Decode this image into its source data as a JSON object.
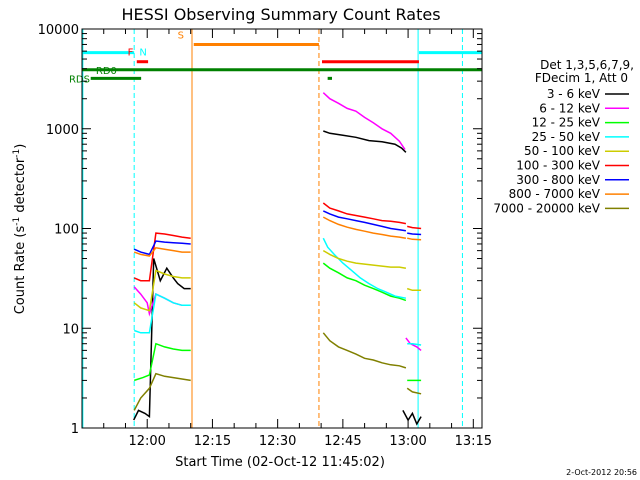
{
  "chart_data": {
    "type": "line",
    "title": "HESSI Observing Summary Count Rates",
    "xlabel": "Start Time (02-Oct-12 11:45:02)",
    "ylabel_main": "Count Rate (s",
    "ylabel_sup1": "-1",
    "ylabel_mid": " detector",
    "ylabel_sup2": "-1",
    "ylabel_end": ")",
    "yscale": "log",
    "ylim": [
      1,
      10000
    ],
    "xlim_minutes": [
      0,
      92
    ],
    "x_ticks": [
      {
        "label": "12:00",
        "minute": 15
      },
      {
        "label": "12:15",
        "minute": 30
      },
      {
        "label": "12:30",
        "minute": 45
      },
      {
        "label": "12:45",
        "minute": 60
      },
      {
        "label": "13:00",
        "minute": 75
      },
      {
        "label": "13:15",
        "minute": 90
      }
    ],
    "y_ticks": [
      {
        "label": "1",
        "value": 1
      },
      {
        "label": "10",
        "value": 10
      },
      {
        "label": "100",
        "value": 100
      },
      {
        "label": "1000",
        "value": 1000
      },
      {
        "label": "10000",
        "value": 10000
      }
    ],
    "legend_title_1": "Det 1,3,5,6,7,9,",
    "legend_title_2": "FDecim 1, Att 0",
    "legend_position": "right",
    "series": [
      {
        "name": "3 - 6 keV",
        "color": "#000000",
        "segments": [
          {
            "x": [
              11.9,
              13.0,
              14.5,
              15.5,
              16.5,
              18.0,
              19.5,
              21.0,
              22.0,
              23.5,
              25.0
            ],
            "y": [
              1.2,
              1.5,
              1.4,
              1.3,
              50,
              30,
              40,
              32,
              28,
              25,
              25
            ]
          },
          {
            "x": [
              55.5,
              57,
              60,
              63,
              66,
              69,
              72,
              73.5,
              74.5
            ],
            "y": [
              950,
              900,
              860,
              820,
              760,
              740,
              700,
              640,
              580
            ]
          },
          {
            "x": [
              73.8,
              75,
              76,
              77,
              78
            ],
            "y": [
              1.5,
              1.2,
              1.4,
              1.1,
              1.3
            ]
          }
        ]
      },
      {
        "name": "6 - 12 keV",
        "color": "#ff00ff",
        "segments": [
          {
            "x": [
              12.0,
              13.5,
              15.0,
              15.5,
              17,
              19,
              21,
              23,
              25
            ],
            "y": [
              26,
              22,
              18,
              14,
              22,
              20,
              18,
              17,
              17
            ]
          },
          {
            "x": [
              55.5,
              57,
              59,
              61,
              63,
              65,
              67,
              69,
              71,
              73,
              74.3
            ],
            "y": [
              2300,
              2000,
              1800,
              1600,
              1500,
              1300,
              1150,
              1000,
              900,
              750,
              620
            ]
          },
          {
            "x": [
              74.5,
              75.5,
              77,
              78
            ],
            "y": [
              8,
              7,
              6.5,
              6
            ]
          }
        ]
      },
      {
        "name": "12 - 25 keV",
        "color": "#00ff00",
        "segments": [
          {
            "x": [
              12.0,
              14,
              15.5,
              17,
              19,
              21,
              23,
              25
            ],
            "y": [
              3,
              3.2,
              3.4,
              7,
              6.5,
              6.2,
              6,
              6
            ]
          },
          {
            "x": [
              55.5,
              57,
              59,
              61,
              63,
              65,
              67,
              69,
              71,
              73,
              74.5
            ],
            "y": [
              45,
              40,
              36,
              32,
              30,
              27,
              25,
              23,
              21,
              20,
              19
            ]
          },
          {
            "x": [
              74.8,
              76,
              78
            ],
            "y": [
              3,
              3,
              3
            ]
          }
        ]
      },
      {
        "name": "25 - 50 keV",
        "color": "#00ffff",
        "segments": [
          {
            "x": [
              12.0,
              13.5,
              15.5,
              17,
              19,
              21,
              23,
              25
            ],
            "y": [
              9.5,
              9,
              9,
              22,
              20,
              18,
              17,
              17
            ]
          },
          {
            "x": [
              55.5,
              56.5,
              58,
              60,
              62,
              64,
              66,
              68,
              70,
              72,
              74.5
            ],
            "y": [
              80,
              65,
              55,
              45,
              38,
              32,
              28,
              25,
              23,
              21,
              20
            ]
          },
          {
            "x": [
              74.8,
              76,
              78
            ],
            "y": [
              7,
              7,
              6.8
            ]
          }
        ]
      },
      {
        "name": "50 - 100 keV",
        "color": "#cccc00",
        "segments": [
          {
            "x": [
              12.0,
              13.5,
              15.5,
              17,
              19,
              21,
              23,
              25
            ],
            "y": [
              18,
              16,
              15,
              38,
              35,
              33,
              32,
              32
            ]
          },
          {
            "x": [
              55.5,
              57,
              59,
              61,
              63,
              65,
              67,
              69,
              71,
              73,
              74.5
            ],
            "y": [
              60,
              55,
              50,
              47,
              45,
              44,
              43,
              42,
              41,
              41,
              40
            ]
          },
          {
            "x": [
              74.8,
              76,
              78
            ],
            "y": [
              25,
              24,
              24
            ]
          }
        ]
      },
      {
        "name": "100 - 300 keV",
        "color": "#ff0000",
        "segments": [
          {
            "x": [
              12.0,
              13.5,
              15.5,
              17,
              19,
              21,
              23,
              25
            ],
            "y": [
              32,
              30,
              30,
              90,
              88,
              85,
              82,
              80
            ]
          },
          {
            "x": [
              55.5,
              57,
              59,
              61,
              63,
              65,
              67,
              69,
              71,
              73,
              74.5
            ],
            "y": [
              180,
              160,
              150,
              140,
              135,
              130,
              125,
              120,
              118,
              115,
              112
            ]
          },
          {
            "x": [
              74.8,
              76,
              78
            ],
            "y": [
              105,
              102,
              100
            ]
          }
        ]
      },
      {
        "name": "300 - 800 keV",
        "color": "#0000ff",
        "segments": [
          {
            "x": [
              12.0,
              13.5,
              15.5,
              17,
              19,
              21,
              23,
              25
            ],
            "y": [
              62,
              58,
              55,
              75,
              73,
              72,
              71,
              70
            ]
          },
          {
            "x": [
              55.5,
              57,
              59,
              61,
              63,
              65,
              67,
              69,
              71,
              73,
              74.5
            ],
            "y": [
              150,
              140,
              130,
              125,
              120,
              115,
              110,
              105,
              100,
              97,
              95
            ]
          },
          {
            "x": [
              74.8,
              76,
              78
            ],
            "y": [
              90,
              88,
              87
            ]
          }
        ]
      },
      {
        "name": "800 - 7000 keV",
        "color": "#ff8000",
        "segments": [
          {
            "x": [
              12.0,
              13.5,
              15.5,
              17,
              19,
              21,
              23,
              25
            ],
            "y": [
              58,
              55,
              53,
              64,
              62,
              60,
              58,
              58
            ]
          },
          {
            "x": [
              55.5,
              57,
              59,
              61,
              63,
              65,
              67,
              69,
              71,
              73,
              74.5
            ],
            "y": [
              130,
              120,
              110,
              103,
              98,
              94,
              90,
              87,
              84,
              82,
              80
            ]
          },
          {
            "x": [
              74.8,
              76,
              78
            ],
            "y": [
              80,
              78,
              77
            ]
          }
        ]
      },
      {
        "name": "7000 - 20000 keV",
        "color": "#808000",
        "segments": [
          {
            "x": [
              12.0,
              13.5,
              15.5,
              17,
              19,
              21,
              23,
              25
            ],
            "y": [
              1.5,
              2,
              2.5,
              3.5,
              3.3,
              3.2,
              3.1,
              3
            ]
          },
          {
            "x": [
              55.5,
              57,
              59,
              61,
              63,
              65,
              67,
              69,
              71,
              73,
              74.5
            ],
            "y": [
              9,
              7.5,
              6.5,
              6,
              5.5,
              5,
              4.8,
              4.5,
              4.3,
              4.2,
              4
            ]
          },
          {
            "x": [
              74.8,
              76,
              78
            ],
            "y": [
              2.5,
              2.3,
              2.2
            ]
          }
        ]
      }
    ],
    "flags": [
      {
        "label": "",
        "color": "#00ffff",
        "segments": [
          [
            0,
            12
          ],
          [
            77.5,
            92
          ]
        ],
        "level": 5800
      },
      {
        "label": "N",
        "color": "#00ffff",
        "segments": [],
        "level": 4700
      },
      {
        "label": "S",
        "color": "#ff8000",
        "segments": [
          [
            25.7,
            54.5
          ]
        ],
        "level": 7000
      },
      {
        "label": "F",
        "color": "#ff0000",
        "segments": [
          [
            12.6,
            15.2
          ],
          [
            55.2,
            77.5
          ]
        ],
        "level": 4700
      },
      {
        "label": "RD0",
        "color": "#008000",
        "segments": [
          [
            0,
            92
          ]
        ],
        "level": 3900
      },
      {
        "label": "RDS",
        "color": "#008000",
        "segments": [
          [
            2,
            13.6
          ],
          [
            56.5,
            57.5
          ]
        ],
        "level": 3200
      }
    ],
    "vertical_markers": [
      {
        "minute": 0.2,
        "color": "#00ffff",
        "style": "solid"
      },
      {
        "minute": 12.0,
        "color": "#00ffff",
        "style": "dashed"
      },
      {
        "minute": 25.3,
        "color": "#ff8000",
        "style": "solid"
      },
      {
        "minute": 54.5,
        "color": "#ff8000",
        "style": "dashed"
      },
      {
        "minute": 77.3,
        "color": "#00ffff",
        "style": "solid"
      },
      {
        "minute": 87.5,
        "color": "#00ffff",
        "style": "dashed"
      }
    ]
  },
  "timestamp": "2-Oct-2012 20:56"
}
